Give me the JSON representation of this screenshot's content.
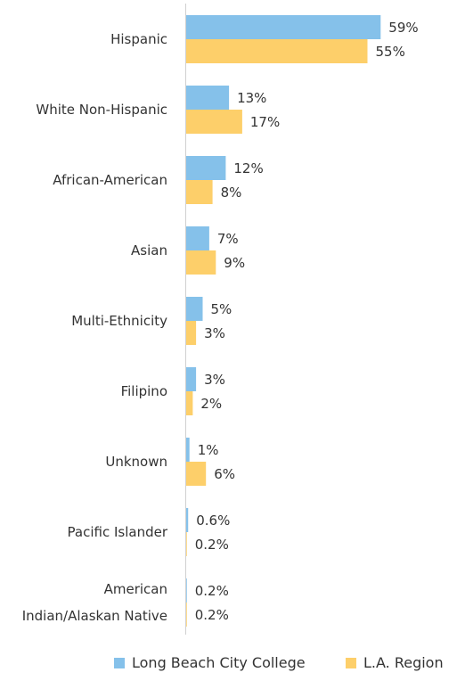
{
  "chart_data": {
    "type": "bar",
    "orientation": "horizontal",
    "categories": [
      "Hispanic",
      "White Non-Hispanic",
      "African-American",
      "Asian",
      "Multi-Ethnicity",
      "Filipino",
      "Unknown",
      "Pacific Islander",
      "American Indian/Alaskan Native"
    ],
    "series": [
      {
        "name": "Long Beach City College",
        "color": "#85c1ea",
        "values": [
          59,
          13,
          12,
          7,
          5,
          3,
          1,
          0.6,
          0.2
        ],
        "value_labels": [
          "59%",
          "13%",
          "12%",
          "7%",
          "5%",
          "3%",
          "1%",
          "0.6%",
          "0.2%"
        ]
      },
      {
        "name": "L.A. Region",
        "color": "#fdcf6a",
        "values": [
          55,
          17,
          8,
          9,
          3,
          2,
          6,
          0.2,
          0.2
        ],
        "value_labels": [
          "55%",
          "17%",
          "8%",
          "9%",
          "3%",
          "2%",
          "6%",
          "0.2%",
          "0.2%"
        ]
      }
    ],
    "legend": "bottom"
  }
}
